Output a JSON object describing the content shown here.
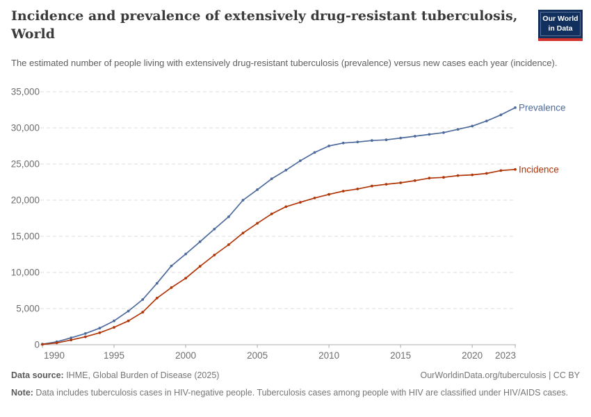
{
  "header": {
    "title_line1": "Incidence and prevalence of extensively drug-resistant tuberculosis,",
    "title_line2": "World",
    "subtitle": "The estimated number of people living with extensively drug-resistant tuberculosis (prevalence) versus new cases each year (incidence).",
    "logo": {
      "line1": "Our World",
      "line2": "in Data"
    }
  },
  "chart_data": {
    "type": "line",
    "x": [
      1990,
      1991,
      1992,
      1993,
      1994,
      1995,
      1996,
      1997,
      1998,
      1999,
      2000,
      2001,
      2002,
      2003,
      2004,
      2005,
      2006,
      2007,
      2008,
      2009,
      2010,
      2011,
      2012,
      2013,
      2014,
      2015,
      2016,
      2017,
      2018,
      2019,
      2020,
      2021,
      2022,
      2023
    ],
    "series": [
      {
        "name": "Prevalence",
        "color": "#4c6a9c",
        "values": [
          80,
          400,
          950,
          1550,
          2300,
          3300,
          4650,
          6250,
          8500,
          10900,
          12550,
          14250,
          16000,
          17700,
          20000,
          21450,
          22950,
          24150,
          25450,
          26600,
          27500,
          27900,
          28050,
          28250,
          28350,
          28600,
          28850,
          29100,
          29350,
          29800,
          30250,
          30950,
          31800,
          32800
        ]
      },
      {
        "name": "Incidence",
        "color": "#b13507",
        "values": [
          50,
          250,
          650,
          1100,
          1650,
          2400,
          3300,
          4500,
          6450,
          7900,
          9200,
          10850,
          12400,
          13850,
          15450,
          16800,
          18100,
          19100,
          19700,
          20300,
          20800,
          21250,
          21550,
          21950,
          22200,
          22400,
          22700,
          23050,
          23150,
          23400,
          23500,
          23700,
          24100,
          24250
        ]
      }
    ],
    "ylim": [
      0,
      35000
    ],
    "yticks": [
      0,
      5000,
      10000,
      15000,
      20000,
      25000,
      30000,
      35000
    ],
    "ytick_labels": [
      "0",
      "5,000",
      "10,000",
      "15,000",
      "20,000",
      "25,000",
      "30,000",
      "35,000"
    ],
    "xticks": [
      1990,
      1995,
      2000,
      2005,
      2010,
      2015,
      2020,
      2023
    ],
    "xtick_labels": [
      "1990",
      "1995",
      "2000",
      "2005",
      "2010",
      "2015",
      "2020",
      "2023"
    ],
    "grid": true,
    "legend_position": "end-of-line",
    "title": "Incidence and prevalence of extensively drug-resistant tuberculosis, World",
    "xlabel": "",
    "ylabel": ""
  },
  "footer": {
    "source_label": "Data source:",
    "source_text": " IHME, Global Burden of Disease (2025)",
    "link_text": "OurWorldinData.org/tuberculosis | CC BY",
    "note_label": "Note:",
    "note_text": " Data includes tuberculosis cases in HIV-negative people. Tuberculosis cases among people with HIV are classified under HIV/AIDS cases."
  }
}
